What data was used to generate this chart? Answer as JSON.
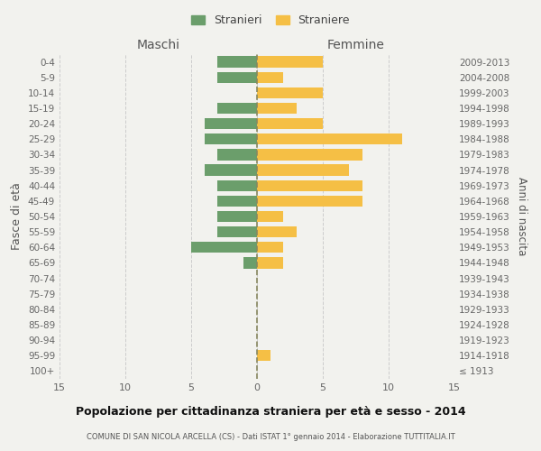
{
  "age_groups": [
    "100+",
    "95-99",
    "90-94",
    "85-89",
    "80-84",
    "75-79",
    "70-74",
    "65-69",
    "60-64",
    "55-59",
    "50-54",
    "45-49",
    "40-44",
    "35-39",
    "30-34",
    "25-29",
    "20-24",
    "15-19",
    "10-14",
    "5-9",
    "0-4"
  ],
  "birth_years": [
    "≤ 1913",
    "1914-1918",
    "1919-1923",
    "1924-1928",
    "1929-1933",
    "1934-1938",
    "1939-1943",
    "1944-1948",
    "1949-1953",
    "1954-1958",
    "1959-1963",
    "1964-1968",
    "1969-1973",
    "1974-1978",
    "1979-1983",
    "1984-1988",
    "1989-1993",
    "1994-1998",
    "1999-2003",
    "2004-2008",
    "2009-2013"
  ],
  "males": [
    0,
    0,
    0,
    0,
    0,
    0,
    0,
    1,
    5,
    3,
    3,
    3,
    3,
    4,
    3,
    4,
    4,
    3,
    0,
    3,
    3
  ],
  "females": [
    0,
    1,
    0,
    0,
    0,
    0,
    0,
    2,
    2,
    3,
    2,
    8,
    8,
    7,
    8,
    11,
    5,
    3,
    5,
    2,
    5
  ],
  "male_color": "#6b9e6b",
  "female_color": "#f5bf45",
  "background_color": "#f2f2ee",
  "grid_color": "#cccccc",
  "centerline_color": "#888860",
  "title": "Popolazione per cittadinanza straniera per età e sesso - 2014",
  "subtitle": "COMUNE DI SAN NICOLA ARCELLA (CS) - Dati ISTAT 1° gennaio 2014 - Elaborazione TUTTITALIA.IT",
  "header_left": "Maschi",
  "header_right": "Femmine",
  "ylabel_left": "Fasce di età",
  "ylabel_right": "Anni di nascita",
  "xlim": 15,
  "xticks": [
    -15,
    -10,
    -5,
    0,
    5,
    10,
    15
  ],
  "xtick_labels": [
    "15",
    "10",
    "5",
    "0",
    "5",
    "10",
    "15"
  ],
  "legend_male": "Stranieri",
  "legend_female": "Straniere"
}
